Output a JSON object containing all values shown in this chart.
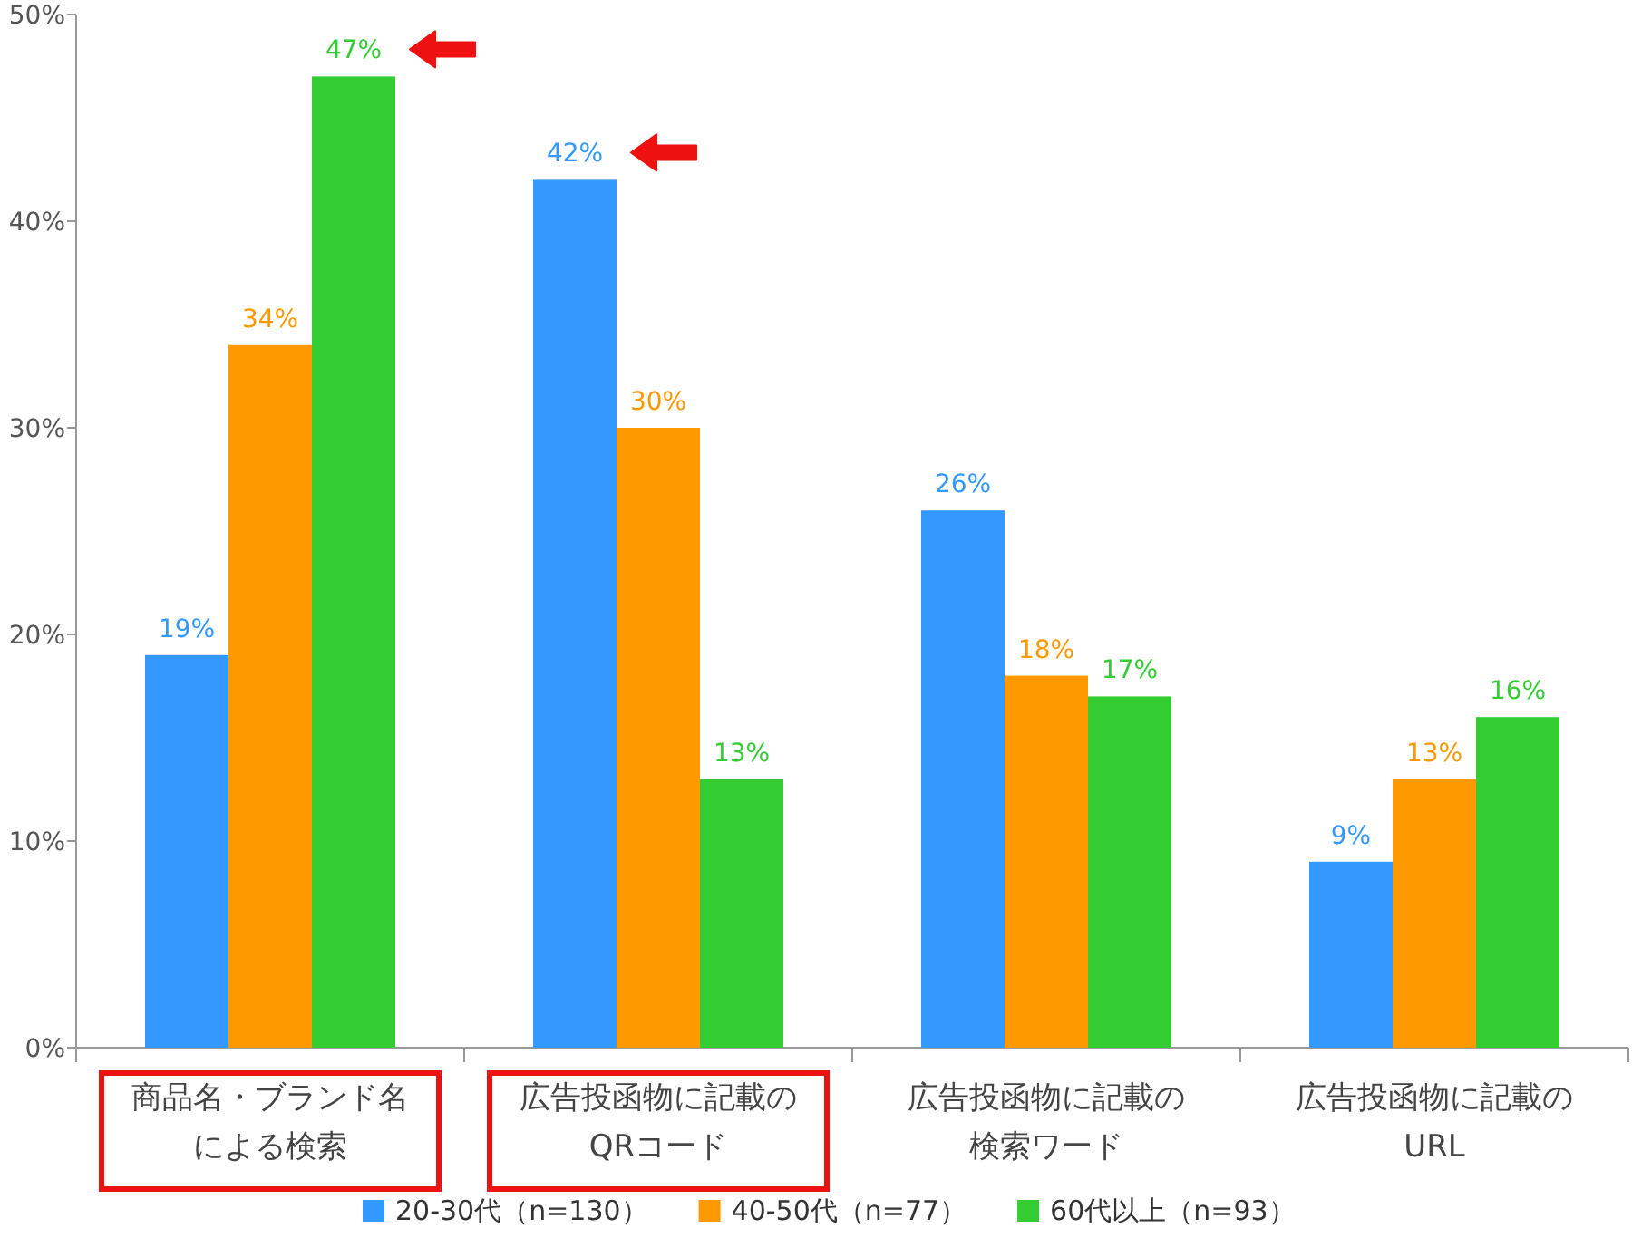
{
  "chart_data": {
    "type": "bar",
    "categories": [
      "商品名・ブランド名による検索",
      "広告投函物に記載のQRコード",
      "広告投函物に記載の検索ワード",
      "広告投函物に記載のURL"
    ],
    "series": [
      {
        "name": "20-30代（n=130）",
        "color": "#3399ff",
        "values": [
          19,
          42,
          26,
          9
        ]
      },
      {
        "name": "40-50代（n=77）",
        "color": "#ff9900",
        "values": [
          34,
          30,
          18,
          13
        ]
      },
      {
        "name": "60代以上（n=93）",
        "color": "#33cc33",
        "values": [
          47,
          13,
          17,
          16
        ]
      }
    ],
    "ylim": [
      0,
      50
    ],
    "yticks": [
      {
        "value": 0,
        "label": "0%"
      },
      {
        "value": 10,
        "label": "10%"
      },
      {
        "value": 20,
        "label": "20%"
      },
      {
        "value": 30,
        "label": "30%"
      },
      {
        "value": 40,
        "label": "40%"
      },
      {
        "value": 50,
        "label": "50%"
      }
    ],
    "value_labels": [
      [
        "19%",
        "42%",
        "26%",
        "9%"
      ],
      [
        "34%",
        "30%",
        "18%",
        "13%"
      ],
      [
        "47%",
        "13%",
        "17%",
        "16%"
      ]
    ],
    "grid": false,
    "legend": "bottom"
  }
}
